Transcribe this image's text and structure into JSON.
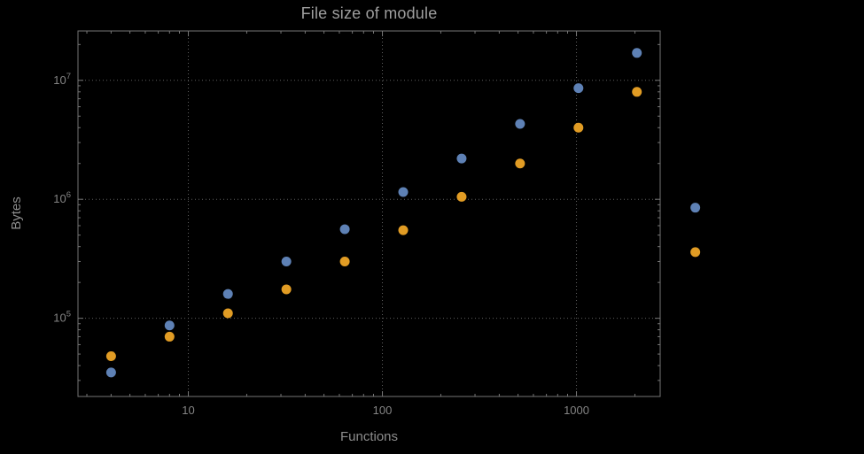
{
  "chart_data": {
    "type": "scatter",
    "title": "File size of module",
    "xlabel": "Functions",
    "ylabel": "Bytes",
    "xscale": "log",
    "yscale": "log",
    "grid": "dotted",
    "legend": "none",
    "x_range": [
      2.7,
      2700
    ],
    "y_range": [
      22000,
      26000000
    ],
    "x": [
      4,
      8,
      16,
      32,
      64,
      128,
      256,
      512,
      1024,
      2048,
      4096
    ],
    "series": [
      {
        "name": "blue-series",
        "color": "#5e81b5",
        "values": [
          35000,
          87000,
          160000,
          300000,
          560000,
          1150000,
          2200000,
          4300000,
          8600000,
          17000000,
          850000
        ]
      },
      {
        "name": "orange-series",
        "color": "#e19c24",
        "values": [
          48000,
          70000,
          110000,
          175000,
          300000,
          550000,
          1050000,
          2000000,
          4000000,
          8000000,
          360000
        ]
      }
    ],
    "x_ticks": [
      {
        "label": "10",
        "value": 10
      },
      {
        "label": "100",
        "value": 100
      },
      {
        "label": "1000",
        "value": 1000
      }
    ],
    "y_ticks": [
      {
        "base": "10",
        "exp": "5",
        "value": 100000
      },
      {
        "base": "10",
        "exp": "6",
        "value": 1000000
      },
      {
        "base": "10",
        "exp": "7",
        "value": 10000000
      }
    ],
    "colors": {
      "background": "#000000",
      "frame": "#767676",
      "grid": "#5f5f5f",
      "tick_label": "#848484",
      "title": "#9e9e9e",
      "axis_label": "#8c8c8c"
    }
  }
}
